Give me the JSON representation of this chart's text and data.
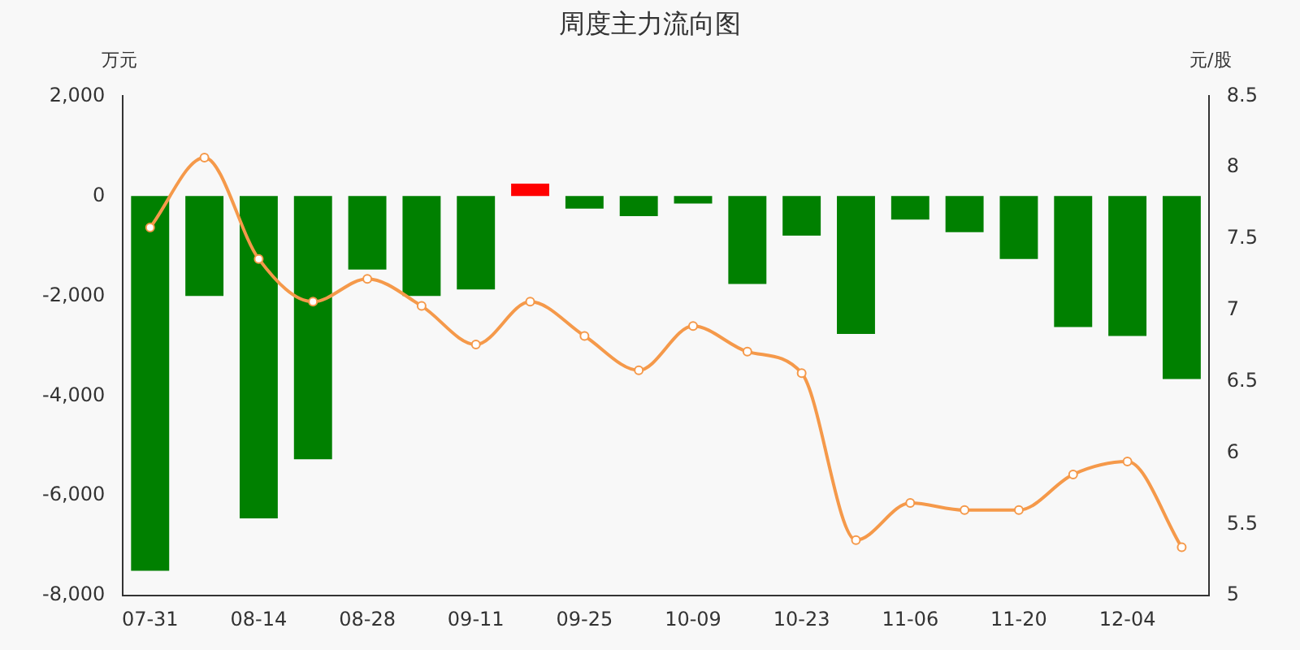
{
  "chart_data": {
    "type": "bar",
    "title": "周度主力流向图",
    "ylabel": "万元",
    "y2label": "元/股",
    "categories": [
      "07-31",
      null,
      "08-14",
      null,
      "08-28",
      null,
      "09-11",
      null,
      "09-25",
      null,
      "10-09",
      null,
      "10-23",
      null,
      "11-06",
      null,
      "11-20",
      null,
      "12-04",
      null
    ],
    "series": [
      {
        "colors": [
          "#008000",
          "#008000",
          "#008000",
          "#008000",
          "#008000",
          "#008000",
          "#008000",
          "#ff0000",
          "#008000",
          "#008000",
          "#008000",
          "#008000",
          "#008000",
          "#008000",
          "#008000",
          "#008000",
          "#008000",
          "#008000",
          "#008000",
          "#008000"
        ],
        "values": [
          -7500,
          -2000,
          -6450,
          -5270,
          -1470,
          -2000,
          -1870,
          250,
          -250,
          -400,
          -150,
          -1760,
          -790,
          -2760,
          -470,
          -720,
          -1260,
          -2620,
          -2800,
          -3660
        ]
      },
      {
        "type": "line",
        "axis": "y2",
        "color": "#f5994a",
        "marker": "circle",
        "values": [
          7.58,
          8.07,
          7.36,
          7.06,
          7.22,
          7.03,
          6.76,
          7.06,
          6.82,
          6.58,
          6.89,
          6.71,
          6.56,
          5.39,
          5.65,
          5.6,
          5.6,
          5.85,
          5.94,
          5.34
        ]
      }
    ],
    "ylim": [
      -8000,
      2000
    ],
    "yticks": [
      {
        "value": -8000,
        "label": "-8,000"
      },
      {
        "value": -6000,
        "label": "-6,000"
      },
      {
        "value": -4000,
        "label": "-4,000"
      },
      {
        "value": -2000,
        "label": "-2,000"
      },
      0,
      {
        "value": 2000,
        "label": "2,000"
      }
    ],
    "y2lim": [
      5,
      8.5
    ],
    "y2ticks": [
      5,
      5.5,
      6,
      6.5,
      7,
      7.5,
      8,
      8.5
    ],
    "grid": false,
    "legend": false
  }
}
